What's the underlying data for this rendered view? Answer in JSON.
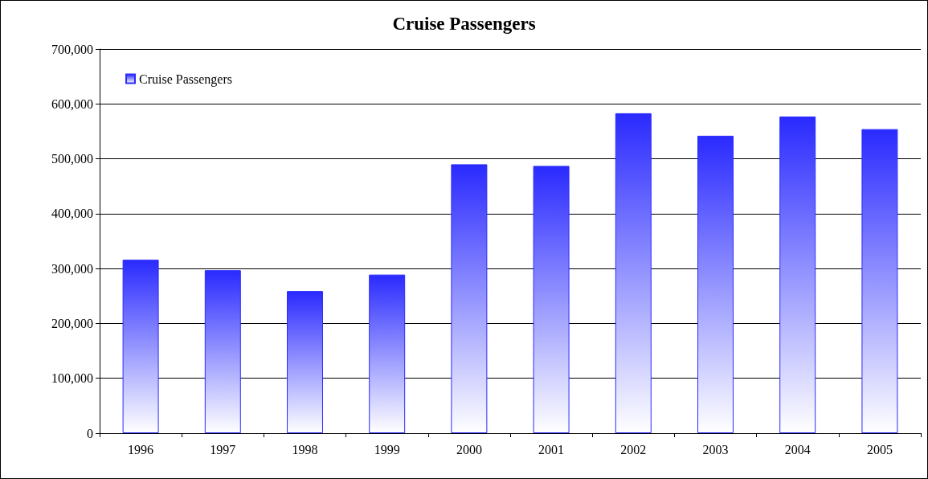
{
  "chart_data": {
    "type": "bar",
    "title": "Cruise Passengers",
    "categories": [
      "1996",
      "1997",
      "1998",
      "1999",
      "2000",
      "2001",
      "2002",
      "2003",
      "2004",
      "2005"
    ],
    "series": [
      {
        "name": "Cruise Passengers",
        "color": "#2a2aff",
        "values": [
          316000,
          297000,
          259000,
          289000,
          490000,
          487000,
          583000,
          542000,
          577000,
          554000
        ]
      }
    ],
    "ylim": [
      0,
      700000
    ],
    "yticks": [
      {
        "value": 0,
        "label": "0"
      },
      {
        "value": 100000,
        "label": "100,000"
      },
      {
        "value": 200000,
        "label": "200,000"
      },
      {
        "value": 300000,
        "label": "300,000"
      },
      {
        "value": 400000,
        "label": "400,000"
      },
      {
        "value": 500000,
        "label": "500,000"
      },
      {
        "value": 600000,
        "label": "600,000"
      },
      {
        "value": 700000,
        "label": "700,000"
      }
    ],
    "grid": "y",
    "legend": "top left"
  }
}
